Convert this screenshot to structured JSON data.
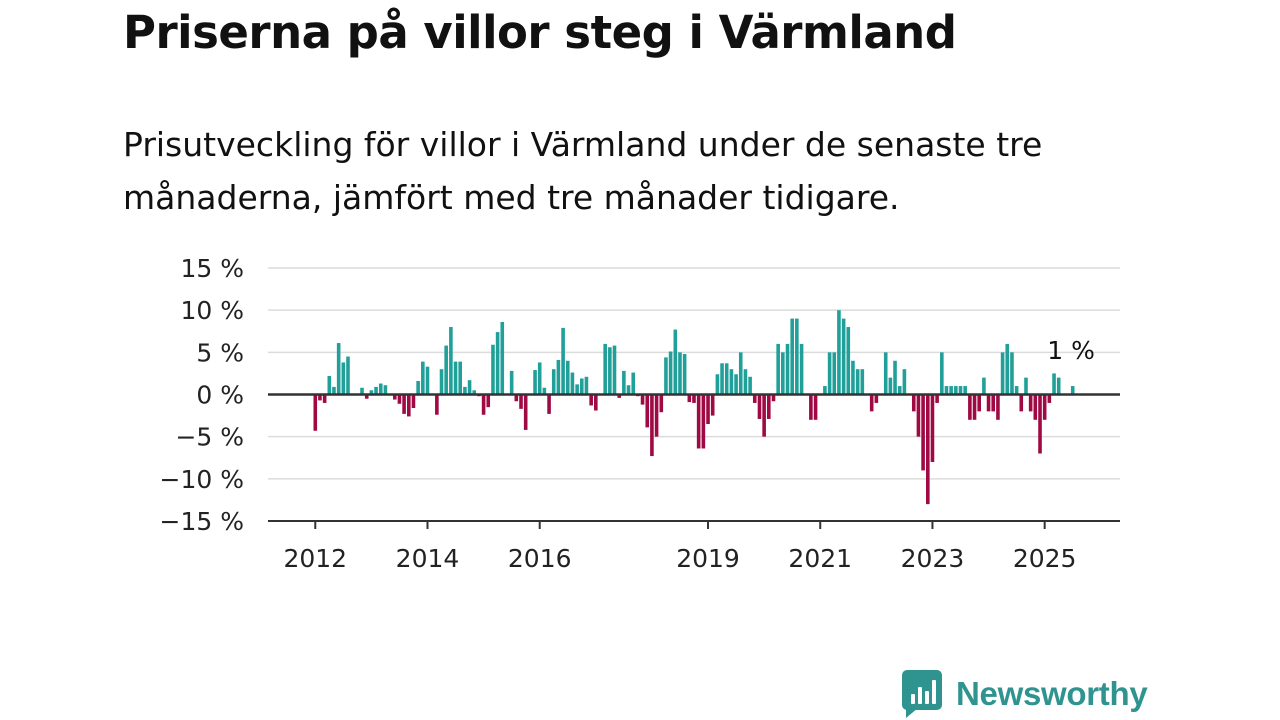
{
  "header": {
    "title": "Priserna på villor steg i Värmland",
    "subtitle": "Prisutveckling för villor i Värmland under de senaste tre månaderna, jämfört med tre månader tidigare."
  },
  "brand": {
    "name": "Newsworthy",
    "icon": "newsworthy-logo-icon",
    "color": "#2f9490"
  },
  "chart_data": {
    "type": "bar",
    "title": "",
    "xlabel": "",
    "ylabel": "",
    "ylim": [
      -15,
      15
    ],
    "y_ticks": [
      15,
      10,
      5,
      0,
      -5,
      -10,
      -15
    ],
    "y_tick_labels": [
      "15 %",
      "10 %",
      "5 %",
      "0 %",
      "−5 %",
      "−10 %",
      "−15 %"
    ],
    "x_tick_labels": [
      "2012",
      "2014",
      "2016",
      "2019",
      "2021",
      "2023",
      "2025"
    ],
    "x_tick_positions": [
      2012,
      2014,
      2016,
      2019,
      2021,
      2023,
      2025
    ],
    "x_range": [
      2011.3,
      2026.2
    ],
    "grid": true,
    "colors": {
      "positive": "#21a09a",
      "negative": "#a00a44",
      "grid": "#dcdcdc",
      "axis": "#333333"
    },
    "annotation": {
      "text": "1 %",
      "x": 2025.47,
      "y": 1
    },
    "series": [
      {
        "x": [
          2012.0,
          2012.083,
          2012.167,
          2012.25,
          2012.333,
          2012.417,
          2012.5,
          2012.583,
          2012.667,
          2012.833,
          2012.917,
          2013.0,
          2013.083,
          2013.167,
          2013.25,
          2013.333,
          2013.417,
          2013.5,
          2013.583,
          2013.667,
          2013.75,
          2013.833,
          2013.917,
          2014.0,
          2014.083,
          2014.167,
          2014.25,
          2014.333,
          2014.417,
          2014.5,
          2014.583,
          2014.667,
          2014.75,
          2014.833,
          2014.917,
          2015.0,
          2015.083,
          2015.167,
          2015.25,
          2015.333,
          2015.417,
          2015.5,
          2015.583,
          2015.667,
          2015.75,
          2015.833,
          2015.917,
          2016.0,
          2016.083,
          2016.167,
          2016.25,
          2016.333,
          2016.417,
          2016.5,
          2016.583,
          2016.667,
          2016.75,
          2016.833,
          2016.917,
          2017.0,
          2017.083,
          2017.167,
          2017.25,
          2017.333,
          2017.417,
          2017.5,
          2017.583,
          2017.667,
          2017.75,
          2017.833,
          2017.917,
          2018.0,
          2018.083,
          2018.167,
          2018.25,
          2018.333,
          2018.417,
          2018.5,
          2018.583,
          2018.667,
          2018.75,
          2018.833,
          2018.917,
          2019.0,
          2019.083,
          2019.167,
          2019.25,
          2019.333,
          2019.417,
          2019.5,
          2019.583,
          2019.667,
          2019.75,
          2019.833,
          2019.917,
          2020.0,
          2020.083,
          2020.167,
          2020.25,
          2020.333,
          2020.417,
          2020.5,
          2020.583,
          2020.667,
          2020.75,
          2020.833,
          2020.917,
          2021.0,
          2021.083,
          2021.167,
          2021.25,
          2021.333,
          2021.417,
          2021.5,
          2021.583,
          2021.667,
          2021.75,
          2021.833,
          2021.917,
          2022.0,
          2022.083,
          2022.167,
          2022.25,
          2022.333,
          2022.417,
          2022.5,
          2022.583,
          2022.667,
          2022.75,
          2022.833,
          2022.917,
          2023.0,
          2023.083,
          2023.167,
          2023.25,
          2023.333,
          2023.417,
          2023.5,
          2023.583,
          2023.667,
          2023.75,
          2023.833,
          2023.917,
          2024.0,
          2024.083,
          2024.167,
          2024.25,
          2024.333,
          2024.417,
          2024.5,
          2024.583,
          2024.667,
          2024.75,
          2024.833,
          2024.917,
          2025.0,
          2025.083,
          2025.167,
          2025.25,
          2025.333,
          2025.5
        ],
        "values": [
          -4.3,
          -0.7,
          -1.0,
          2.2,
          0.9,
          6.1,
          3.8,
          4.5,
          0.0,
          0.8,
          -0.5,
          0.5,
          0.9,
          1.3,
          1.1,
          0.0,
          -0.6,
          -1.1,
          -2.3,
          -2.6,
          -1.6,
          1.6,
          3.9,
          3.3,
          0.0,
          -2.4,
          3.0,
          5.8,
          8.0,
          3.9,
          3.9,
          0.9,
          1.7,
          0.5,
          -0.2,
          -2.4,
          -1.5,
          5.9,
          7.4,
          8.6,
          0.0,
          2.8,
          -0.8,
          -1.7,
          -4.2,
          0.0,
          2.9,
          3.8,
          0.8,
          -2.3,
          3.0,
          4.1,
          7.9,
          4.0,
          2.6,
          1.2,
          1.9,
          2.1,
          -1.3,
          -1.9,
          0.0,
          6.0,
          5.6,
          5.8,
          -0.4,
          2.8,
          1.1,
          2.6,
          -0.2,
          -1.2,
          -3.9,
          -7.3,
          -5.0,
          -2.1,
          4.4,
          5.1,
          7.7,
          5.0,
          4.8,
          -0.9,
          -1.0,
          -6.4,
          -6.4,
          -3.5,
          -2.5,
          2.4,
          3.7,
          3.7,
          3.0,
          2.4,
          5.0,
          3.0,
          2.1,
          -1.0,
          -2.9,
          -5.0,
          -2.9,
          -0.8,
          6.0,
          5.0,
          6.0,
          9.0,
          9.0,
          6.0,
          0.0,
          -3.0,
          -3.0,
          0.0,
          1.0,
          5.0,
          5.0,
          10.0,
          9.0,
          8.0,
          4.0,
          3.0,
          3.0,
          0.0,
          -2.0,
          -1.0,
          0.0,
          5.0,
          2.0,
          4.0,
          1.0,
          3.0,
          0.0,
          -2.0,
          -5.0,
          -9.0,
          -13.0,
          -8.0,
          -1.0,
          5.0,
          1.0,
          1.0,
          1.0,
          1.0,
          1.0,
          -3.0,
          -3.0,
          -2.0,
          2.0,
          -2.0,
          -2.0,
          -3.0,
          5.0,
          6.0,
          5.0,
          1.0,
          -2.0,
          2.0,
          -2.0,
          -3.0,
          -7.0,
          -3.0,
          -1.0,
          2.5,
          2.0,
          0.0,
          1.0
        ]
      }
    ]
  }
}
